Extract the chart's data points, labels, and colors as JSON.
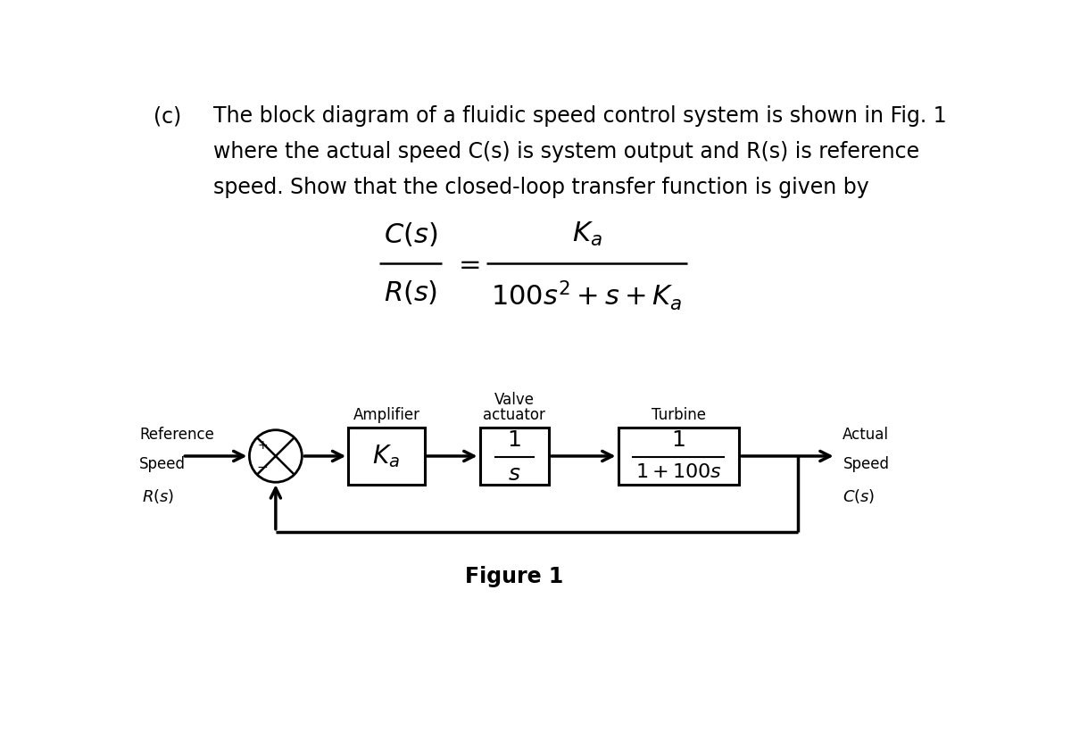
{
  "bg_color": "#ffffff",
  "text_color": "#000000",
  "part_label": "(c)",
  "line1": "The block diagram of a fluidic speed control system is shown in Fig. 1",
  "line2": "where the actual speed C(s) is system output and R(s) is reference",
  "line3": "speed. Show that the closed-loop transfer function is given by",
  "figure_label": "Figure 1",
  "font_size_body": 17,
  "font_size_math": 22,
  "font_size_block": 15,
  "font_size_figure": 17,
  "font_size_diagram": 12
}
